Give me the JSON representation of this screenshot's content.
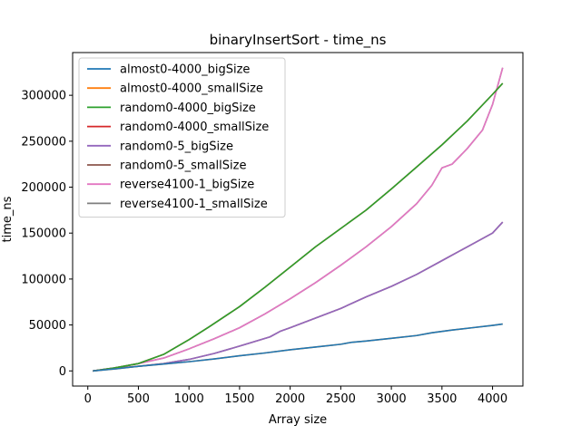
{
  "chart_data": {
    "type": "line",
    "title": "binaryInsertSort - time_ns",
    "xlabel": "Array size",
    "ylabel": "time_ns",
    "xlim": [
      -150,
      4300
    ],
    "ylim": [
      -16500,
      346500
    ],
    "xticks": [
      0,
      500,
      1000,
      1500,
      2000,
      2500,
      3000,
      3500,
      4000
    ],
    "yticks": [
      0,
      50000,
      100000,
      150000,
      200000,
      250000,
      300000
    ],
    "grid": false,
    "legend_position": "upper-left",
    "series": [
      {
        "name": "almost0-4000_bigSize",
        "color": "#1f77b4",
        "x": [
          50,
          300,
          500,
          750,
          1000,
          1250,
          1500,
          1750,
          2000,
          2250,
          2500,
          2600,
          2750,
          3000,
          3250,
          3400,
          3600,
          3800,
          4000,
          4100
        ],
        "y": [
          0,
          2500,
          5000,
          7500,
          10000,
          13000,
          16500,
          19500,
          23000,
          26000,
          29000,
          31000,
          32500,
          35500,
          38500,
          41500,
          44500,
          47000,
          49500,
          51000
        ]
      },
      {
        "name": "almost0-4000_smallSize",
        "color": "#ff7f0e",
        "x": [
          50,
          300,
          500,
          750,
          1000,
          1250,
          1500,
          1750,
          2000,
          2250,
          2500,
          2600,
          2750,
          3000,
          3250,
          3400,
          3600,
          3800,
          4000,
          4100
        ],
        "y": [
          0,
          2500,
          5000,
          7500,
          10000,
          13000,
          16500,
          19500,
          23000,
          26000,
          29000,
          31000,
          32500,
          35500,
          38500,
          41500,
          44500,
          47000,
          49500,
          51000
        ]
      },
      {
        "name": "random0-4000_bigSize",
        "color": "#2ca02c",
        "x": [
          50,
          250,
          500,
          750,
          1000,
          1200,
          1500,
          1750,
          2000,
          2250,
          2500,
          2750,
          3000,
          3250,
          3500,
          3750,
          4000,
          4100
        ],
        "y": [
          0,
          3000,
          8000,
          18000,
          34000,
          48000,
          70000,
          91000,
          113000,
          135000,
          155000,
          175000,
          198000,
          222000,
          246000,
          272000,
          301000,
          313000
        ]
      },
      {
        "name": "random0-4000_smallSize",
        "color": "#d62728",
        "x": [
          50,
          250,
          500,
          750,
          1000,
          1200,
          1500,
          1750,
          2000,
          2250,
          2500,
          2750,
          3000,
          3250,
          3500,
          3750,
          4000,
          4100
        ],
        "y": [
          0,
          3000,
          8000,
          18000,
          34000,
          48000,
          70000,
          91000,
          113000,
          135000,
          155000,
          175000,
          198000,
          222000,
          246000,
          272000,
          301000,
          313000
        ]
      },
      {
        "name": "random0-5_bigSize",
        "color": "#9467bd",
        "x": [
          50,
          300,
          500,
          750,
          1000,
          1250,
          1500,
          1800,
          1900,
          2000,
          2250,
          2500,
          2750,
          3000,
          3250,
          3500,
          3750,
          4000,
          4100
        ],
        "y": [
          0,
          3000,
          5000,
          8000,
          12500,
          19000,
          27000,
          37000,
          43000,
          47000,
          57500,
          68000,
          80500,
          92000,
          105000,
          120000,
          135000,
          150000,
          162000
        ]
      },
      {
        "name": "random0-5_smallSize",
        "color": "#8c564b",
        "x": [
          50,
          300,
          500,
          750,
          1000,
          1250,
          1500,
          1800,
          1900,
          2000,
          2250,
          2500,
          2750,
          3000,
          3250,
          3500,
          3750,
          4000,
          4100
        ],
        "y": [
          0,
          3000,
          5000,
          8000,
          12500,
          19000,
          27000,
          37000,
          43000,
          47000,
          57500,
          68000,
          80500,
          92000,
          105000,
          120000,
          135000,
          150000,
          162000
        ]
      },
      {
        "name": "reverse4100-1_bigSize",
        "color": "#e377c2",
        "x": [
          50,
          250,
          500,
          750,
          1000,
          1250,
          1500,
          1750,
          2000,
          2250,
          2500,
          2750,
          3000,
          3250,
          3400,
          3500,
          3600,
          3750,
          3900,
          4000,
          4100
        ],
        "y": [
          0,
          3000,
          8000,
          14000,
          24000,
          35000,
          47000,
          62000,
          78500,
          96000,
          115000,
          135000,
          157000,
          182000,
          202000,
          221000,
          225000,
          242000,
          262000,
          290000,
          330000
        ]
      },
      {
        "name": "reverse4100-1_smallSize",
        "color": "#7f7f7f",
        "x": [
          50,
          250,
          500,
          750,
          1000,
          1250,
          1500,
          1750,
          2000,
          2250,
          2500,
          2750,
          3000,
          3250,
          3400,
          3500,
          3600,
          3750,
          3900,
          4000,
          4100
        ],
        "y": [
          0,
          3000,
          8000,
          14000,
          24000,
          35000,
          47000,
          62000,
          78500,
          96000,
          115000,
          135000,
          157000,
          182000,
          202000,
          221000,
          225000,
          242000,
          262000,
          290000,
          330000
        ]
      }
    ],
    "draw_order": [
      7,
      6,
      5,
      4,
      3,
      2,
      1,
      0
    ]
  }
}
